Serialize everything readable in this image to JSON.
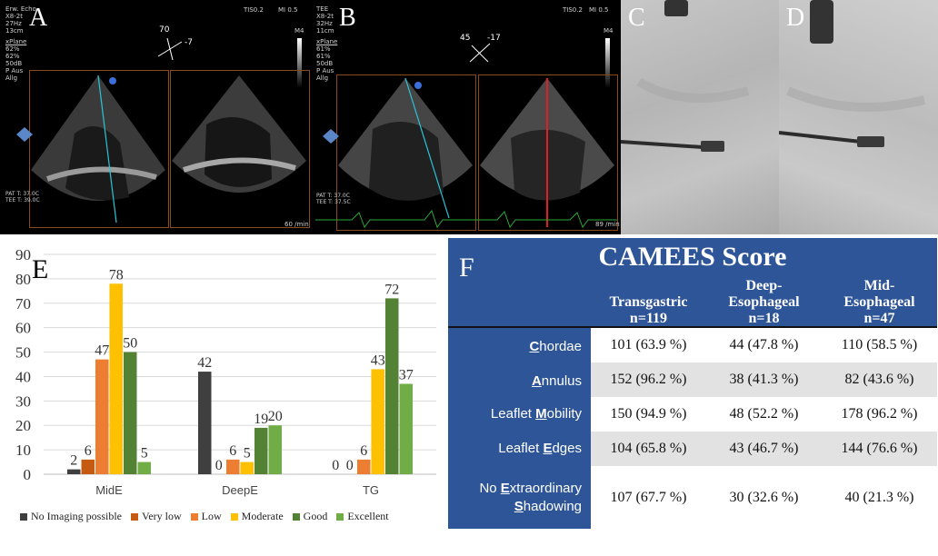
{
  "panels": {
    "a": {
      "letter": "A",
      "meta": "Erw. Echo\nX8-2t\n27Hz\n13cm",
      "xplane": "xPlane",
      "settings": "62%\n62%\n50dB\nP Aus\nAllg",
      "tis": "TIS0.2",
      "mi": "MI 0.5",
      "angle_a": "70",
      "angle_b": "-7",
      "m4": "M4",
      "pat": "PAT T: 37.0C\nTEE T: 39.0C",
      "rate": "60 /min"
    },
    "b": {
      "letter": "B",
      "meta": "TEE\nX8-2t\n32Hz\n11cm",
      "xplane": "xPlane",
      "settings": "61%\n61%\n50dB\nP Aus\nAllg",
      "tis": "TIS0.2",
      "mi": "MI 0.5",
      "angle_a": "45",
      "angle_b": "-17",
      "m4": "M4",
      "pat": "PAT T: 37.0C\nTEE T: 37.5C",
      "rate": "89 /min"
    },
    "c": {
      "letter": "C"
    },
    "d": {
      "letter": "D"
    }
  },
  "colors": {
    "no_imaging": "#3f3f3f",
    "very_low": "#c55a11",
    "low": "#ed7d31",
    "moderate": "#ffc000",
    "good": "#548235",
    "excellent": "#70ad47",
    "table_blue": "#2e5597"
  },
  "chart_data": {
    "type": "bar",
    "panel_letter": "E",
    "categories": [
      "MidE",
      "DeepE",
      "TG"
    ],
    "series": [
      {
        "name": "No Imaging possible",
        "values": [
          2,
          42,
          0
        ]
      },
      {
        "name": "Very low",
        "values": [
          6,
          0,
          0
        ]
      },
      {
        "name": "Low",
        "values": [
          47,
          6,
          6
        ]
      },
      {
        "name": "Moderate",
        "values": [
          78,
          5,
          43
        ]
      },
      {
        "name": "Good",
        "values": [
          50,
          19,
          72
        ]
      },
      {
        "name": "Excellent",
        "values": [
          5,
          20,
          37
        ]
      }
    ],
    "yticks": [
      "0",
      "10",
      "20",
      "30",
      "40",
      "50",
      "60",
      "70",
      "80",
      "90"
    ],
    "ylim": [
      0,
      90
    ],
    "grid": true,
    "legend_position": "bottom"
  },
  "table": {
    "letter": "F",
    "title": "CAMEES Score",
    "columns": [
      {
        "line1": "Transgastric",
        "line2": "n=119"
      },
      {
        "line1": "Deep-",
        "line2": "Esophageal",
        "line3": "n=18"
      },
      {
        "line1": "Mid-",
        "line2": "Esophageal",
        "line3": "n=47"
      }
    ],
    "rows": [
      {
        "key_letter": "C",
        "label_rest": "hordae",
        "label_prefix": "",
        "values": [
          "101 (63.9 %)",
          "44 (47.8 %)",
          "110 (58.5 %)"
        ]
      },
      {
        "key_letter": "A",
        "label_rest": "nnulus",
        "label_prefix": "",
        "values": [
          "152 (96.2 %)",
          "38 (41.3 %)",
          "82 (43.6 %)"
        ]
      },
      {
        "key_letter": "M",
        "label_rest": "obility",
        "label_prefix": "Leaflet ",
        "values": [
          "150 (94.9 %)",
          "48 (52.2 %)",
          "178 (96.2 %)"
        ]
      },
      {
        "key_letter": "E",
        "label_rest": "dges",
        "label_prefix": "Leaflet ",
        "values": [
          "104 (65.8 %)",
          "43 (46.7 %)",
          "144 (76.6 %)"
        ]
      },
      {
        "label_line1_prefix": "No ",
        "key_letter": "E",
        "label_line1_rest": "xtraordinary",
        "key_letter2": "S",
        "label_line2_rest": "hadowing",
        "values": [
          "107 (67.7 %)",
          "30 (32.6 %)",
          "40 (21.3 %)"
        ]
      }
    ]
  }
}
